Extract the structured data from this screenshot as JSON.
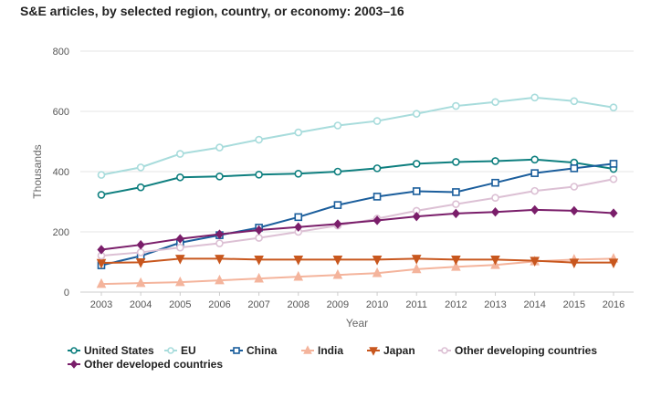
{
  "chart_data": {
    "type": "line",
    "title": "S&E articles, by selected region, country, or economy: 2003–16",
    "xlabel": "Year",
    "ylabel": "Thousands",
    "ylim": [
      0,
      800
    ],
    "yticks": [
      0,
      200,
      400,
      600,
      800
    ],
    "grid": true,
    "legend_position": "bottom",
    "x": [
      2003,
      2004,
      2005,
      2006,
      2007,
      2008,
      2009,
      2010,
      2011,
      2012,
      2013,
      2014,
      2015,
      2016
    ],
    "x_tick_labels": [
      "2003",
      "2004",
      "2005",
      "2006",
      "2007",
      "2008",
      "2009",
      "2010",
      "2011",
      "2012",
      "2013",
      "2014",
      "2015",
      "2016"
    ],
    "series": [
      {
        "name": "United States",
        "color": "#0e7f7f",
        "marker": "circle",
        "values": [
          323,
          348,
          381,
          384,
          390,
          393,
          400,
          411,
          426,
          432,
          435,
          440,
          430,
          409
        ]
      },
      {
        "name": "EU",
        "color": "#a8dcdc",
        "marker": "circle",
        "values": [
          389,
          414,
          459,
          480,
          506,
          530,
          553,
          568,
          592,
          618,
          631,
          646,
          634,
          613
        ]
      },
      {
        "name": "China",
        "color": "#1b5e9c",
        "marker": "square",
        "values": [
          89,
          120,
          164,
          189,
          214,
          249,
          289,
          317,
          335,
          332,
          363,
          395,
          411,
          426
        ]
      },
      {
        "name": "India",
        "color": "#f4b49c",
        "marker": "triangle-up",
        "values": [
          27,
          30,
          33,
          39,
          45,
          51,
          57,
          63,
          76,
          84,
          90,
          102,
          108,
          111
        ]
      },
      {
        "name": "Japan",
        "color": "#c8571e",
        "marker": "triangle-down",
        "values": [
          97,
          99,
          111,
          111,
          108,
          108,
          108,
          108,
          111,
          108,
          108,
          104,
          98,
          98
        ]
      },
      {
        "name": "Other developing countries",
        "color": "#dcc0d4",
        "marker": "circle",
        "values": [
          121,
          132,
          148,
          162,
          180,
          200,
          221,
          244,
          270,
          292,
          313,
          336,
          350,
          375
        ]
      },
      {
        "name": "Other developed countries",
        "color": "#7a1e6a",
        "marker": "diamond",
        "values": [
          141,
          157,
          177,
          192,
          206,
          216,
          226,
          238,
          251,
          261,
          266,
          273,
          270,
          262
        ]
      }
    ]
  }
}
